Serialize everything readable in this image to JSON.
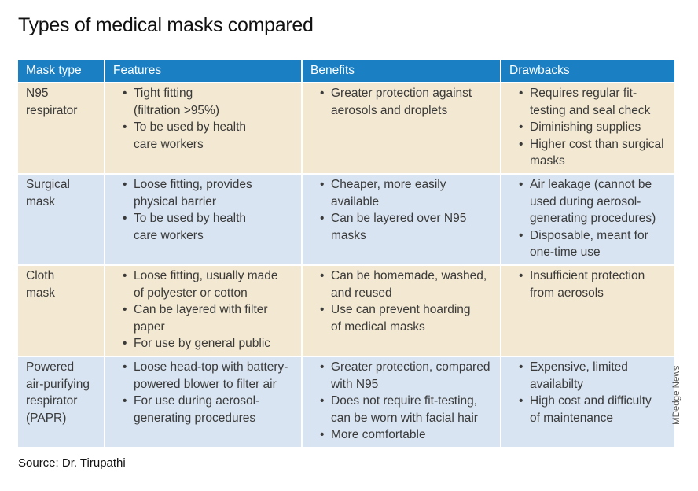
{
  "title": "Types of medical masks compared",
  "headers": [
    "Mask type",
    "Features",
    "Benefits",
    "Drawbacks"
  ],
  "rows": [
    {
      "type": "N95\nrespirator",
      "features": [
        "Tight fitting\n(filtration >95%)",
        "To be used by health\ncare workers"
      ],
      "benefits": [
        "Greater protection against\naerosols and droplets"
      ],
      "drawbacks": [
        "Requires regular fit-\ntesting and seal check",
        "Diminishing supplies",
        "Higher cost than surgical\nmasks"
      ]
    },
    {
      "type": "Surgical\nmask",
      "features": [
        "Loose fitting, provides\nphysical barrier",
        "To be used by health\ncare workers"
      ],
      "benefits": [
        "Cheaper, more easily\navailable",
        "Can be layered over N95\nmasks"
      ],
      "drawbacks": [
        "Air leakage (cannot be\nused during aerosol-\ngenerating procedures)",
        "Disposable, meant for\none-time use"
      ]
    },
    {
      "type": "Cloth\nmask",
      "features": [
        "Loose fitting, usually made\nof polyester or cotton",
        "Can be layered with filter\npaper",
        "For use by general public"
      ],
      "benefits": [
        "Can be homemade, washed,\nand reused",
        "Use can prevent hoarding\nof medical masks"
      ],
      "drawbacks": [
        "Insufficient protection\nfrom aerosols"
      ]
    },
    {
      "type": "Powered\nair-purifying\nrespirator\n(PAPR)",
      "features": [
        "Loose head-top with battery-\npowered blower to filter air",
        "For use during aerosol-\ngenerating procedures"
      ],
      "benefits": [
        "Greater protection, compared\nwith N95",
        "Does not require fit-testing,\ncan be worn with facial hair",
        "More comfortable"
      ],
      "drawbacks": [
        "Expensive, limited\navailabilty",
        "High cost and difficulty\nof maintenance"
      ]
    }
  ],
  "source": "Source: Dr. Tirupathi",
  "credit": "MDedge News",
  "colors": {
    "header_bg": "#1b7fc4",
    "row_tan": "#f3e8d1",
    "row_blue": "#d8e4f1"
  }
}
